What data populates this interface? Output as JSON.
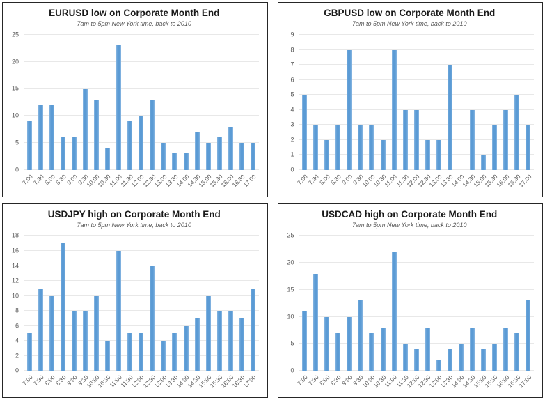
{
  "colors": {
    "bar": "#5b9bd5",
    "bar_edge": "#8ab7e2",
    "grid": "#e8e8e8",
    "title": "#1a1a1a",
    "subtitle": "#555555",
    "tick": "#595959",
    "panel_border": "#262626"
  },
  "chart_data": [
    {
      "type": "bar",
      "title": "EURUSD low on Corporate Month End",
      "subtitle": "7am to 5pm New York time, back to 2010",
      "categories": [
        "7:00",
        "7:30",
        "8:00",
        "8:30",
        "9:00",
        "9:30",
        "10:00",
        "10:30",
        "11:00",
        "11:30",
        "12:00",
        "12:30",
        "13:00",
        "13:30",
        "14:00",
        "14:30",
        "15:00",
        "15:30",
        "16:00",
        "16:30",
        "17:00"
      ],
      "values": [
        9,
        12,
        12,
        6,
        6,
        15,
        13,
        4,
        23,
        9,
        10,
        13,
        5,
        3,
        3,
        7,
        5,
        6,
        8,
        5,
        5
      ],
      "xlabel": "",
      "ylabel": "",
      "ylim": [
        0,
        25
      ],
      "ytick_step": 5,
      "grid": true,
      "legend": false
    },
    {
      "type": "bar",
      "title": "GBPUSD low on Corporate Month End",
      "subtitle": "7am to 5pm New York time, back to 2010",
      "categories": [
        "7:00",
        "7:30",
        "8:00",
        "8:30",
        "9:00",
        "9:30",
        "10:00",
        "10:30",
        "11:00",
        "11:30",
        "12:00",
        "12:30",
        "13:00",
        "13:30",
        "14:00",
        "14:30",
        "15:00",
        "15:30",
        "16:00",
        "16:30",
        "17:00"
      ],
      "values": [
        5,
        3,
        2,
        3,
        8,
        3,
        3,
        2,
        8,
        4,
        4,
        2,
        2,
        7,
        0,
        4,
        1,
        3,
        4,
        5,
        3
      ],
      "xlabel": "",
      "ylabel": "",
      "ylim": [
        0,
        9
      ],
      "ytick_step": 1,
      "grid": true,
      "legend": false
    },
    {
      "type": "bar",
      "title": "USDJPY high on Corporate Month End",
      "subtitle": "7am to 5pm New York time, back to 2010",
      "categories": [
        "7:00",
        "7:30",
        "8:00",
        "8:30",
        "9:00",
        "9:30",
        "10:00",
        "10:30",
        "11:00",
        "11:30",
        "12:00",
        "12:30",
        "13:00",
        "13:30",
        "14:00",
        "14:30",
        "15:00",
        "15:30",
        "16:00",
        "16:30",
        "17:00"
      ],
      "values": [
        5,
        11,
        10,
        17,
        8,
        8,
        10,
        4,
        16,
        5,
        5,
        14,
        4,
        5,
        6,
        7,
        10,
        8,
        8,
        7,
        11
      ],
      "xlabel": "",
      "ylabel": "",
      "ylim": [
        0,
        18
      ],
      "ytick_step": 2,
      "grid": true,
      "legend": false
    },
    {
      "type": "bar",
      "title": "USDCAD high on Corporate Month End",
      "subtitle": "7am to 5pm New York time, back to 2010",
      "categories": [
        "7:00",
        "7:30",
        "8:00",
        "8:30",
        "9:00",
        "9:30",
        "10:00",
        "10:30",
        "11:00",
        "11:30",
        "12:00",
        "12:30",
        "13:00",
        "13:30",
        "14:00",
        "14:30",
        "15:00",
        "15:30",
        "16:00",
        "16:30",
        "17:00"
      ],
      "values": [
        11,
        18,
        10,
        7,
        10,
        13,
        7,
        8,
        22,
        5,
        4,
        8,
        2,
        4,
        5,
        8,
        4,
        5,
        8,
        7,
        13
      ],
      "xlabel": "",
      "ylabel": "",
      "ylim": [
        0,
        25
      ],
      "ytick_step": 5,
      "grid": true,
      "legend": false
    }
  ]
}
